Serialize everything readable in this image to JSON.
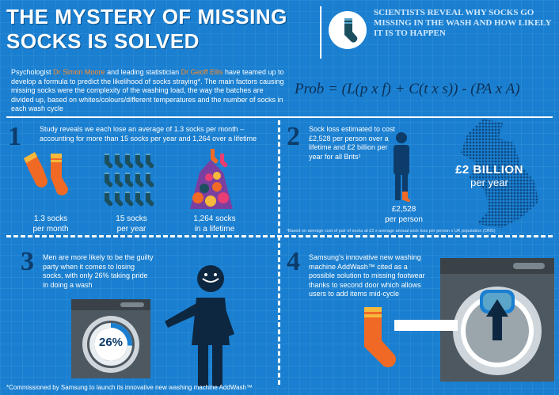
{
  "title_line1": "THE MYSTERY OF MISSING",
  "title_line2": "SOCKS IS SOLVED",
  "headline": "SCIENTISTS REVEAL WHY SOCKS GO MISSING IN THE WASH AND HOW LIKELY IT IS TO HAPPEN",
  "intro": {
    "part1": "Psychologist ",
    "name1": "Dr Simon Moore",
    "part2": " and leading statistician ",
    "name2": "Dr Geoff Ellis",
    "part3": " have teamed up to develop a formula to predict the likelihood of socks straying*. The main factors causing missing socks were the complexity of the washing load, the way the batches are divided up, based on whites/colours/different temperatures and the number of socks in each wash cycle"
  },
  "formula": "Prob = (L(p x f) + C(t x s)) - (PA x A)",
  "section1": {
    "number": "1",
    "text": "Study reveals we each lose an average of 1.3 socks per month – accounting for more than 15 socks per year and 1,264  over a lifetime",
    "stat1_a": "1.3 socks",
    "stat1_b": "per month",
    "stat2_a": "15 socks",
    "stat2_b": "per year",
    "stat3_a": "1,264 socks",
    "stat3_b": "in a lifetime"
  },
  "section2": {
    "number": "2",
    "text": "Sock loss estimated to cost £2,528 per person over a lifetime and £2 billion per year for all Brits¹",
    "person_a": "£2,528",
    "person_b": "per person",
    "billion_a": "£2 BILLION",
    "billion_b": "per year",
    "footnote": "¹Based on average cost of pair of socks at £3 x average annual sock loss per person x UK population (ONS)"
  },
  "section3": {
    "number": "3",
    "text": "Men are more likely to be the guilty party when it comes to losing socks, with only 26% taking pride in doing a wash",
    "percent": "26%",
    "percent_value": 26
  },
  "section4": {
    "number": "4",
    "text": "Samsung's innovative new washing machine AddWash™ cited as a possible solution to missing footwear thanks to second door which allows users to add items mid-cycle"
  },
  "footer": "*Commissioned by Samsung to launch its innovative new washing machine AddWash™",
  "colors": {
    "background": "#1a7fd0",
    "accent_orange": "#ff8c2a",
    "sock_orange": "#f06a25",
    "dark_navy": "#0d3c6b",
    "sock_teal": "#1c4f5e",
    "machine_grey": "#4e5860"
  }
}
